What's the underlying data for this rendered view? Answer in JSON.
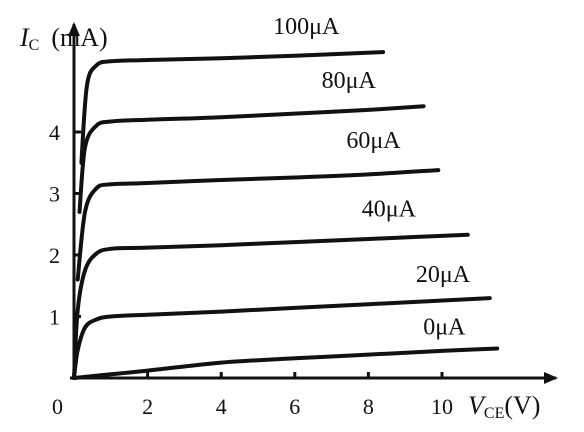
{
  "chart_data": {
    "type": "line",
    "xlabel": {
      "symbol": "V",
      "subscript": "CE",
      "unit": "(V)"
    },
    "ylabel": {
      "symbol": "I",
      "subscript": "C",
      "unit": "(mA)"
    },
    "origin_label": "0",
    "xlim": [
      0,
      13
    ],
    "ylim": [
      0,
      5.5
    ],
    "xticks": [
      2,
      4,
      6,
      8,
      10
    ],
    "xtick_labels": [
      "2",
      "4",
      "6",
      "8",
      "10"
    ],
    "yticks": [
      1,
      2,
      3,
      4
    ],
    "ytick_labels": [
      "1",
      "2",
      "3",
      "4"
    ],
    "grid": false,
    "legend": "none",
    "series": [
      {
        "name": "0μA",
        "x": [
          0,
          1,
          2,
          4,
          6,
          8,
          10,
          11.5
        ],
        "y": [
          0,
          0.06,
          0.12,
          0.25,
          0.32,
          0.38,
          0.44,
          0.48
        ]
      },
      {
        "name": "20μA",
        "x": [
          0,
          0.1,
          0.3,
          0.6,
          1,
          2,
          4,
          6,
          8,
          11.3
        ],
        "y": [
          0,
          0.45,
          0.82,
          0.95,
          1.0,
          1.03,
          1.08,
          1.14,
          1.2,
          1.3
        ]
      },
      {
        "name": "40μA",
        "x": [
          0,
          0.1,
          0.3,
          0.6,
          1,
          2,
          4,
          6,
          8,
          10.7
        ],
        "y": [
          0,
          1.1,
          1.75,
          2.02,
          2.1,
          2.12,
          2.16,
          2.21,
          2.26,
          2.33
        ]
      },
      {
        "name": "60μA",
        "x": [
          0.1,
          0.3,
          0.6,
          1,
          2,
          4,
          6,
          8,
          9.9
        ],
        "y": [
          1.6,
          2.7,
          3.08,
          3.15,
          3.17,
          3.22,
          3.26,
          3.31,
          3.38
        ]
      },
      {
        "name": "80μA",
        "x": [
          0.15,
          0.3,
          0.6,
          1,
          2,
          4,
          6,
          8,
          9.5
        ],
        "y": [
          2.7,
          3.75,
          4.1,
          4.17,
          4.2,
          4.24,
          4.3,
          4.36,
          4.42
        ]
      },
      {
        "name": "100μA",
        "x": [
          0.2,
          0.35,
          0.6,
          1,
          2,
          4,
          6,
          8.4
        ],
        "y": [
          3.5,
          4.75,
          5.08,
          5.15,
          5.17,
          5.2,
          5.24,
          5.3
        ]
      }
    ]
  }
}
